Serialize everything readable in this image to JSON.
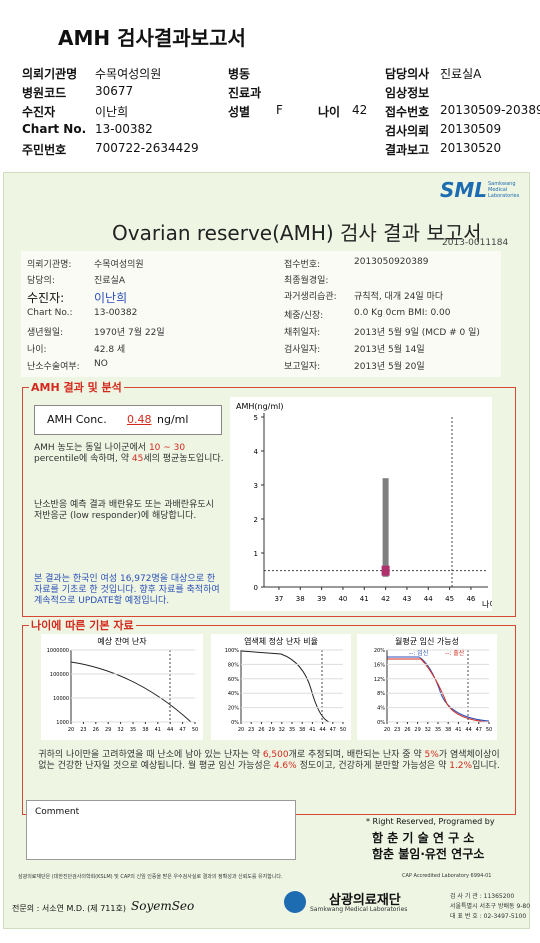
{
  "header": {
    "title": "AMH 검사결과보고서",
    "fields": [
      {
        "label": "의뢰기관명",
        "value": "수목여성의원"
      },
      {
        "label": "병동"
      },
      {
        "label": "담당의사",
        "value": "진료실A"
      },
      {
        "label": "병원코드",
        "value": "30677"
      },
      {
        "label": "진료과"
      },
      {
        "label": "임상정보"
      },
      {
        "label": "수진자",
        "value": "이난희"
      },
      {
        "label": "성별",
        "value": "F"
      },
      {
        "label": "나이",
        "value": "42"
      },
      {
        "label": "접수번호",
        "value": "20130509-20389"
      },
      {
        "label": "Chart No.",
        "value": "13-00382"
      },
      {
        "label": "검사의뢰",
        "value": "20130509"
      },
      {
        "label": "주민번호",
        "value": "700722-2634429"
      },
      {
        "label": "결과보고",
        "value": "20130520"
      }
    ]
  },
  "report": {
    "logo": "SML",
    "logo_sub": "Samkwang Medical Laboratories",
    "title": "Ovarian reserve(AMH) 검사 결과 보고서",
    "report_no": "2013-0011184",
    "left_fields": [
      {
        "label": "의뢰기관명:",
        "value": "수목여성의원"
      },
      {
        "label": "담당의:",
        "value": "진료실A"
      },
      {
        "label": "수진자:",
        "value": "이난희"
      },
      {
        "label": "Chart No.:",
        "value": "13-00382"
      },
      {
        "label": "생년월일:",
        "value": "1970년 7월 22일"
      },
      {
        "label": "나이:",
        "value": "42.8 세"
      },
      {
        "label": "난소수술여부:",
        "value": "NO"
      }
    ],
    "right_fields": [
      {
        "label": "접수번호:",
        "value": "2013050920389"
      },
      {
        "label": "최종월경일:"
      },
      {
        "label": "과거생리습관:",
        "value": "규칙적, 대개  24일 마다"
      },
      {
        "label": "체중/신장:",
        "value": "0.0 Kg      0cm    BMI:  0.00"
      },
      {
        "label": "채취일자:",
        "value": "2013년 5월 9일    (MCD #  0 일)"
      },
      {
        "label": "검사일자:",
        "value": "2013년 5월 14일"
      },
      {
        "label": "보고일자:",
        "value": "2013년 5월 20일"
      }
    ],
    "amh_section": {
      "title": "AMH 결과 및 분석",
      "conc_label": "AMH Conc.",
      "conc_value": "0.48",
      "conc_unit": "ng/ml",
      "para1": [
        {
          "text": "AMH 농도는 동일 나이군에서 "
        },
        {
          "text": "10 ~ 30",
          "color": "#d42a1e"
        },
        {
          "text": " percentile에 속하며, 약 "
        },
        {
          "text": "45",
          "color": "#d42a1e"
        },
        {
          "text": "세의 평균농도입니다."
        }
      ],
      "para2": [
        {
          "text": "난소반응 예측 결과 배란유도 또는 과배란유도시 저반응군 (low responder)에 해당합니다."
        }
      ],
      "para3": [
        {
          "text": "본 결과는 한국인 여성 16,972명을 대상으로 한 자료를 기초로 한 것입니다. 향후 자료를 축적하여 계속적으로 UPDATE할 예정입니다.",
          "color": "#2b4fb8"
        }
      ]
    },
    "amh_chart": {
      "ylabel": "AMH(ng/ml)",
      "xlabel": "나이",
      "xlim": [
        36.3,
        46.8
      ],
      "ylim": [
        0,
        5
      ],
      "xticks": [
        37,
        38,
        39,
        40,
        41,
        42,
        43,
        44,
        45,
        46
      ],
      "yticks": [
        0,
        1,
        2,
        3,
        4,
        5
      ],
      "age": 42,
      "value": 0.48,
      "range": [
        0.3,
        3.2
      ],
      "range_color": "#7f7f7f",
      "value_color": "#b0306e"
    },
    "basic_section": {
      "title": "나이에 따른 기본 자료",
      "charts": [
        {
          "title": "예상 잔여 난자",
          "log": true,
          "xlim": [
            20,
            50
          ],
          "ylim": [
            1000,
            1000000
          ],
          "xticks": [
            20,
            23,
            26,
            29,
            32,
            35,
            38,
            41,
            44,
            47,
            50
          ],
          "yticks": [
            1000,
            10000,
            100000,
            1000000
          ]
        },
        {
          "title": "염색체 정상 난자 비율",
          "log": false,
          "xlim": [
            20,
            50
          ],
          "ylim": [
            0,
            100
          ],
          "xticks": [
            20,
            23,
            26,
            29,
            32,
            35,
            38,
            41,
            44,
            47,
            50
          ],
          "yticks": [
            {
              "value": 0,
              "label": "0%"
            },
            {
              "value": 20,
              "label": "20%"
            },
            {
              "value": 40,
              "label": "40%"
            },
            {
              "value": 60,
              "label": "60%"
            },
            {
              "value": 80,
              "label": "80%"
            },
            {
              "value": 100,
              "label": "100%"
            }
          ]
        },
        {
          "title": "월평균 임신 가능성",
          "log": false,
          "xlim": [
            20,
            50
          ],
          "ylim": [
            0,
            20
          ],
          "xticks": [
            20,
            23,
            26,
            29,
            32,
            35,
            38,
            41,
            44,
            47,
            50
          ],
          "yticks": [
            {
              "value": 0,
              "label": "0%"
            },
            {
              "value": 4,
              "label": "4%"
            },
            {
              "value": 8,
              "label": "8%"
            },
            {
              "value": 12,
              "label": "12%"
            },
            {
              "value": 16,
              "label": "16%"
            },
            {
              "value": 20,
              "label": "20%"
            }
          ],
          "legend": [
            {
              "name": "--: 임신",
              "color": "#2b4fb8"
            },
            {
              "name": "--: 출산",
              "color": "#d42a1e"
            }
          ]
        }
      ],
      "summary": [
        {
          "text": "귀하의 나이만을 고려하였을 때 난소에 남아 있는 난자는 약 "
        },
        {
          "text": "6,500",
          "color": "#d42a1e"
        },
        {
          "text": "개로 추정되며, 배란되는 난자 중 약 "
        },
        {
          "text": "5%",
          "color": "#d42a1e"
        },
        {
          "text": "가 염색체이상이 없는 건강한 난자일 것으로 예상됩니다. 월 평균 임신 가능성은 "
        },
        {
          "text": "4.6%",
          "color": "#d42a1e"
        },
        {
          "text": " 정도이고, 건강하게 분만할 가능성은 약 "
        },
        {
          "text": "1.2%",
          "color": "#d42a1e"
        },
        {
          "text": "입니다."
        }
      ]
    },
    "comment_label": "Comment",
    "credit": "* Right Reserved, Programed by",
    "credit_org1": "함 춘 기 술 연 구 소",
    "credit_org2": "함춘 불임·유전 연구소",
    "footer_note": "삼광의료재단은 (대한진단검사의학회(KSLM) 및 CAP의 신임 인증을 받은 우수검사실로 결과의 정확성과 신뢰도를 유지합니다.",
    "cap": "CAP  Accredited  Laboratory  6994-01",
    "doctor": "전문의 : 서소연 M.D. (제 711호)",
    "signature": "SoyemSeo",
    "org_name": "삼광의료재단",
    "org_sub": "Samkwang Medical Laboratories",
    "org_info": [
      "검 사 기 관 : 11365200",
      "서울특별시 서초구 방배동 9-80",
      "대 표 번 호 : 02-3497-5100"
    ]
  }
}
